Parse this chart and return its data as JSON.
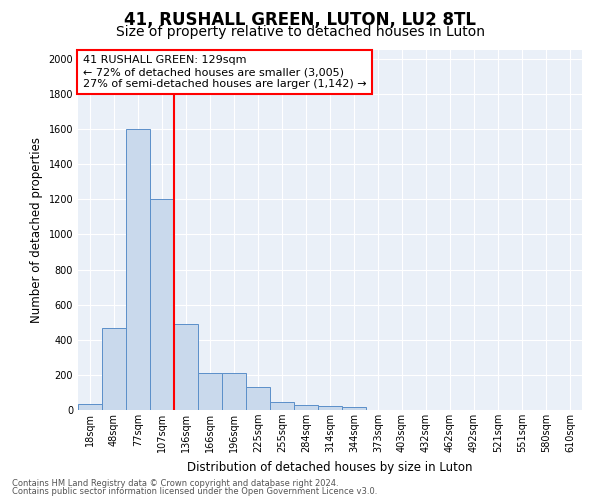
{
  "title": "41, RUSHALL GREEN, LUTON, LU2 8TL",
  "subtitle": "Size of property relative to detached houses in Luton",
  "xlabel": "Distribution of detached houses by size in Luton",
  "ylabel": "Number of detached properties",
  "footnote1": "Contains HM Land Registry data © Crown copyright and database right 2024.",
  "footnote2": "Contains public sector information licensed under the Open Government Licence v3.0.",
  "bar_labels": [
    "18sqm",
    "48sqm",
    "77sqm",
    "107sqm",
    "136sqm",
    "166sqm",
    "196sqm",
    "225sqm",
    "255sqm",
    "284sqm",
    "314sqm",
    "344sqm",
    "373sqm",
    "403sqm",
    "432sqm",
    "462sqm",
    "492sqm",
    "521sqm",
    "551sqm",
    "580sqm",
    "610sqm"
  ],
  "bar_values": [
    35,
    465,
    1600,
    1200,
    490,
    210,
    210,
    130,
    45,
    30,
    20,
    15,
    0,
    0,
    0,
    0,
    0,
    0,
    0,
    0,
    0
  ],
  "bar_color": "#c9d9ec",
  "bar_edge_color": "#5b8fc9",
  "vline_x_index": 4,
  "vline_color": "red",
  "annotation_text": "41 RUSHALL GREEN: 129sqm\n← 72% of detached houses are smaller (3,005)\n27% of semi-detached houses are larger (1,142) →",
  "annotation_box_color": "white",
  "annotation_box_edge": "red",
  "ylim": [
    0,
    2050
  ],
  "yticks": [
    0,
    200,
    400,
    600,
    800,
    1000,
    1200,
    1400,
    1600,
    1800,
    2000
  ],
  "bg_color": "#eaf0f8",
  "fig_bg": "#ffffff",
  "title_fontsize": 12,
  "subtitle_fontsize": 10,
  "label_fontsize": 8.5,
  "tick_fontsize": 7,
  "annot_fontsize": 8
}
